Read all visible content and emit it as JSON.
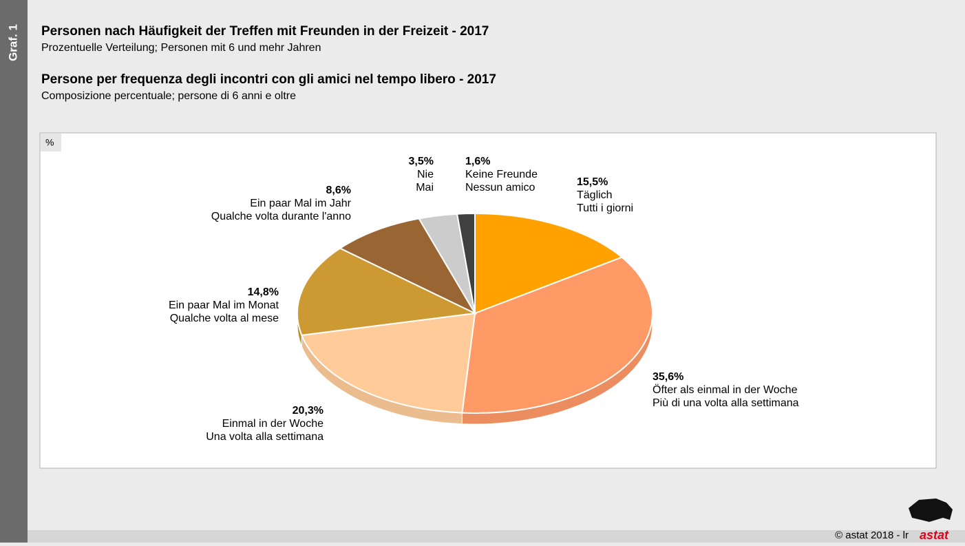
{
  "chart_data": {
    "type": "pie",
    "figure_label": "Graf. 1",
    "title": "Personen nach Häufigkeit der Treffen mit Freunden in der Freizeit - 2017",
    "subtitle": "Prozentuelle Verteilung; Personen mit 6 und mehr Jahren",
    "title_it": "Persone per frequenza degli incontri con gli amici nel tempo libero - 2017",
    "subtitle_it": "Composizione percentuale; persone di 6 anni e oltre",
    "unit_label": "%",
    "categories": [
      [
        "Täglich",
        "Tutti i giorni"
      ],
      [
        "Öfter als einmal in der Woche",
        "Più di una volta alla settimana"
      ],
      [
        "Einmal in der Woche",
        "Una volta alla settimana"
      ],
      [
        "Ein paar Mal im Monat",
        "Qualche volta al mese"
      ],
      [
        "Ein paar Mal im Jahr",
        "Qualche volta durante l'anno"
      ],
      [
        "Nie",
        "Mai"
      ],
      [
        "Keine Freunde",
        "Nessun amico"
      ]
    ],
    "values": [
      15.5,
      35.6,
      20.3,
      14.8,
      8.6,
      3.5,
      1.6
    ],
    "value_labels": [
      "15,5%",
      "35,6%",
      "20,3%",
      "14,8%",
      "8,6%",
      "3,5%",
      "1,6%"
    ],
    "colors": [
      "#ffa200",
      "#ff9966",
      "#ffcc99",
      "#cc9933",
      "#996633",
      "#cccccc",
      "#404040"
    ],
    "source": "© astat 2018 - lr",
    "logo": "astat"
  }
}
